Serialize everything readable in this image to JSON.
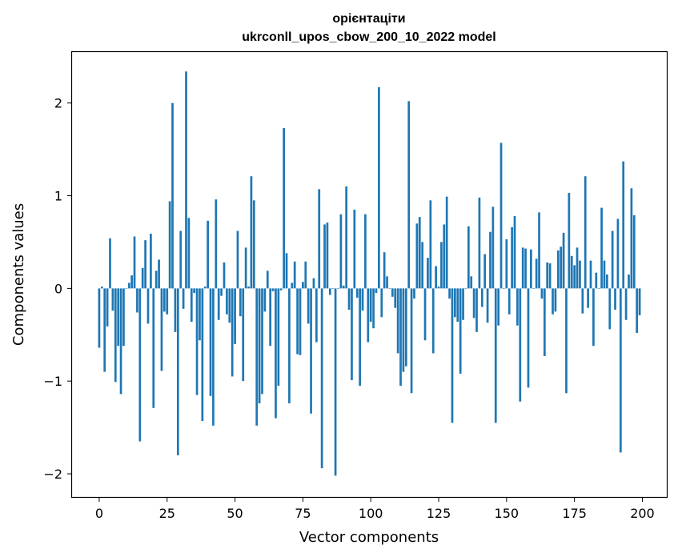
{
  "chart_data": {
    "type": "bar",
    "title_line1": "орієнтаціти",
    "title_line2": "ukrconll_upos_cbow_200_10_2022 model",
    "xlabel": "Vector components",
    "ylabel": "Components values",
    "xlim": [
      -10,
      209
    ],
    "ylim": [
      -2.25,
      2.55
    ],
    "xticks": [
      0,
      25,
      50,
      75,
      100,
      125,
      150,
      175,
      200
    ],
    "xtick_labels": [
      "0",
      "25",
      "50",
      "75",
      "100",
      "125",
      "150",
      "175",
      "200"
    ],
    "yticks": [
      -2,
      -1,
      0,
      1,
      2
    ],
    "ytick_labels": [
      "−2",
      "−1",
      "0",
      "1",
      "2"
    ],
    "bar_color": "#1f77b4",
    "grid": false,
    "values": [
      -0.64,
      0.02,
      -0.9,
      -0.41,
      0.54,
      -0.24,
      -1.01,
      -0.62,
      -1.14,
      -0.62,
      0.0,
      0.06,
      0.14,
      0.56,
      -0.26,
      -1.65,
      0.22,
      0.52,
      -0.38,
      0.59,
      -1.29,
      0.19,
      0.31,
      -0.89,
      -0.25,
      -0.28,
      0.94,
      2.0,
      -0.47,
      -1.8,
      0.62,
      -0.22,
      2.34,
      0.76,
      -0.36,
      -0.05,
      -1.15,
      -0.56,
      -1.43,
      0.02,
      0.73,
      -1.16,
      -1.48,
      0.96,
      -0.34,
      -0.08,
      0.28,
      -0.28,
      -0.37,
      -0.95,
      -0.6,
      0.62,
      -0.3,
      -1.0,
      0.44,
      0.02,
      1.21,
      0.95,
      -1.48,
      -1.24,
      -1.14,
      -0.25,
      0.19,
      -0.62,
      -0.03,
      -1.4,
      -1.05,
      -0.02,
      1.73,
      0.38,
      -1.24,
      0.06,
      0.29,
      -0.71,
      -0.72,
      0.07,
      0.29,
      -0.38,
      -1.35,
      0.11,
      -0.58,
      1.07,
      -1.94,
      0.69,
      0.71,
      -0.07,
      0.0,
      -2.02,
      0.0,
      0.8,
      0.03,
      1.1,
      -0.23,
      -0.99,
      0.85,
      -0.1,
      -1.05,
      -0.24,
      0.8,
      -0.58,
      -0.36,
      -0.43,
      -0.05,
      2.17,
      -0.31,
      0.39,
      0.13,
      0.0,
      -0.09,
      -0.21,
      -0.7,
      -1.05,
      -0.9,
      -0.84,
      2.02,
      -1.13,
      -0.11,
      0.7,
      0.77,
      0.5,
      -0.56,
      0.33,
      0.95,
      -0.7,
      0.24,
      0.02,
      0.5,
      0.69,
      0.99,
      -0.11,
      -1.45,
      -0.31,
      -0.36,
      -0.92,
      -0.34,
      0.0,
      0.67,
      0.13,
      -0.32,
      -0.47,
      0.98,
      -0.2,
      0.37,
      -0.37,
      0.61,
      0.88,
      -1.45,
      -0.4,
      1.57,
      0.0,
      0.53,
      -0.28,
      0.66,
      0.78,
      -0.4,
      -1.22,
      0.44,
      0.43,
      -1.07,
      0.42,
      0.0,
      0.32,
      0.82,
      -0.11,
      -0.73,
      0.28,
      0.27,
      -0.28,
      -0.25,
      0.41,
      0.45,
      0.6,
      -1.13,
      1.03,
      0.35,
      0.25,
      0.44,
      0.3,
      -0.27,
      1.21,
      -0.21,
      0.3,
      -0.62,
      0.17,
      0.0,
      0.87,
      0.3,
      0.15,
      -0.44,
      0.62,
      -0.23,
      0.75,
      -1.77,
      1.37,
      -0.34,
      0.15,
      1.08,
      0.79,
      -0.48,
      -0.29
    ]
  }
}
